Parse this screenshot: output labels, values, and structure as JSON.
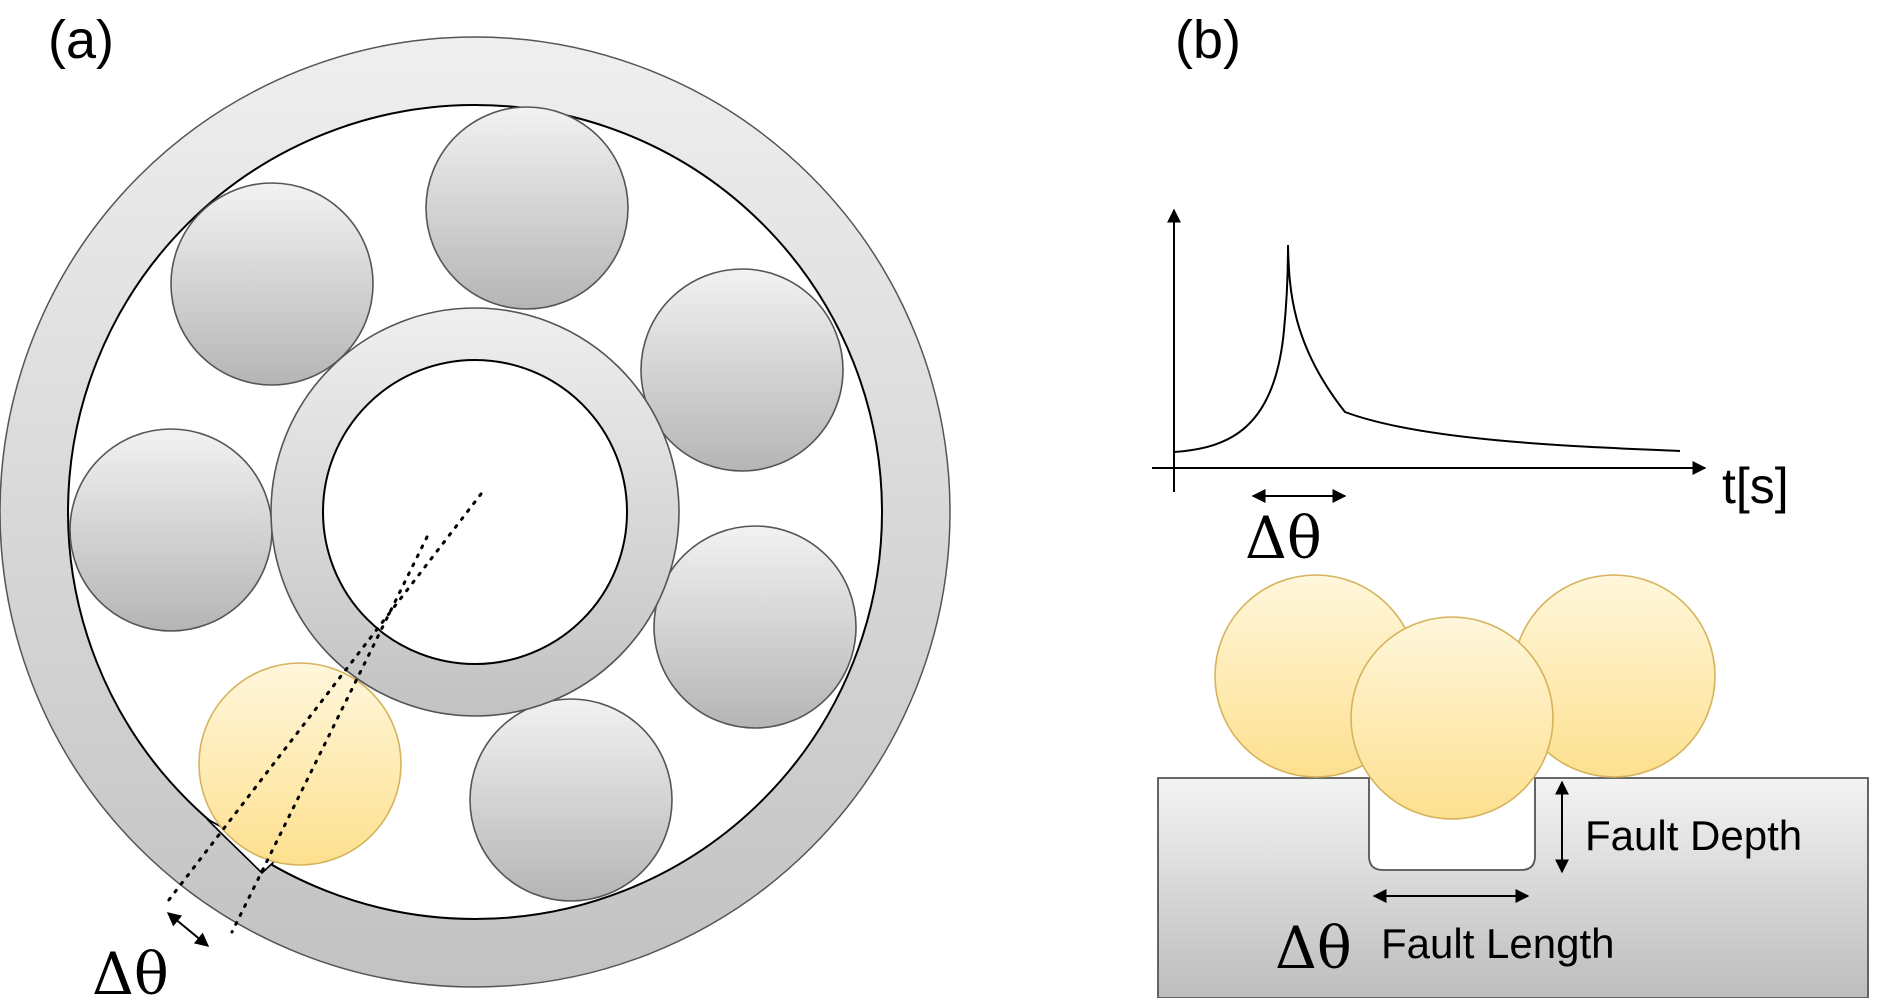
{
  "panels": {
    "a": {
      "label": "(a)",
      "delta_label": "Δθ"
    },
    "b": {
      "label": "(b)",
      "time_axis_label": "t[s]",
      "delta_label_plot": "Δθ",
      "fault_depth_label": "Fault Depth",
      "delta_label_fault": "Δθ",
      "fault_length_label": "Fault Length"
    }
  },
  "colors": {
    "ring_light": "#efefef",
    "ring_dark": "#c4c4c4",
    "ball_grey_light": "#f2f2f2",
    "ball_grey_dark": "#b8b8b8",
    "ball_yellow_light": "#fff6d8",
    "ball_yellow_dark": "#fde194",
    "ball_yellow_stroke": "#d9b55a",
    "stroke": "#555555"
  }
}
